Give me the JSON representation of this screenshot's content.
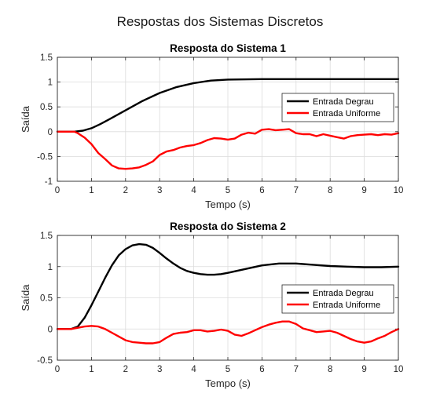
{
  "figure": {
    "title": "Respostas dos Sistemas Discretos"
  },
  "colors": {
    "series1": "#000000",
    "series2": "#ff0000",
    "grid": "#dcdcdc",
    "axis": "#262626"
  },
  "chart_data": [
    {
      "type": "line",
      "title": "Resposta do Sistema 1",
      "xlabel": "Tempo (s)",
      "ylabel": "Saída",
      "xlim": [
        0,
        10
      ],
      "ylim": [
        -1,
        1.5
      ],
      "xticks": [
        0,
        1,
        2,
        3,
        4,
        5,
        6,
        7,
        8,
        9,
        10
      ],
      "yticks": [
        -1,
        -0.5,
        0,
        0.5,
        1,
        1.5
      ],
      "grid": true,
      "legend": "right",
      "series": [
        {
          "name": "Entrada Degrau",
          "x": [
            0,
            0.5,
            0.75,
            1,
            1.25,
            1.5,
            2,
            2.5,
            3,
            3.5,
            4,
            4.5,
            5,
            6,
            7,
            8,
            9,
            10
          ],
          "y": [
            0,
            0,
            0.02,
            0.07,
            0.15,
            0.24,
            0.43,
            0.62,
            0.78,
            0.9,
            0.98,
            1.03,
            1.05,
            1.06,
            1.06,
            1.06,
            1.06,
            1.06
          ]
        },
        {
          "name": "Entrada Uniforme",
          "x": [
            0,
            0.5,
            0.6,
            0.8,
            1,
            1.2,
            1.4,
            1.6,
            1.8,
            2,
            2.2,
            2.4,
            2.6,
            2.8,
            3,
            3.2,
            3.4,
            3.6,
            3.8,
            4,
            4.2,
            4.4,
            4.6,
            4.8,
            5,
            5.2,
            5.4,
            5.6,
            5.8,
            6,
            6.2,
            6.4,
            6.6,
            6.8,
            7,
            7.2,
            7.4,
            7.6,
            7.8,
            8,
            8.2,
            8.4,
            8.6,
            8.8,
            9,
            9.2,
            9.4,
            9.6,
            9.8,
            10
          ],
          "y": [
            0,
            0,
            -0.03,
            -0.12,
            -0.25,
            -0.43,
            -0.55,
            -0.68,
            -0.74,
            -0.75,
            -0.74,
            -0.72,
            -0.67,
            -0.6,
            -0.47,
            -0.4,
            -0.37,
            -0.32,
            -0.29,
            -0.27,
            -0.23,
            -0.17,
            -0.13,
            -0.14,
            -0.16,
            -0.14,
            -0.06,
            -0.02,
            -0.04,
            0.04,
            0.05,
            0.03,
            0.04,
            0.05,
            -0.03,
            -0.05,
            -0.05,
            -0.09,
            -0.05,
            -0.08,
            -0.11,
            -0.14,
            -0.09,
            -0.07,
            -0.06,
            -0.05,
            -0.07,
            -0.05,
            -0.06,
            -0.03
          ]
        }
      ]
    },
    {
      "type": "line",
      "title": "Resposta do Sistema 2",
      "xlabel": "Tempo (s)",
      "ylabel": "Saída",
      "xlim": [
        0,
        10
      ],
      "ylim": [
        -0.5,
        1.5
      ],
      "xticks": [
        0,
        1,
        2,
        3,
        4,
        5,
        6,
        7,
        8,
        9,
        10
      ],
      "yticks": [
        -0.5,
        0,
        0.5,
        1,
        1.5
      ],
      "grid": true,
      "legend": "right",
      "series": [
        {
          "name": "Entrada Degrau",
          "x": [
            0,
            0.4,
            0.6,
            0.8,
            1,
            1.2,
            1.4,
            1.6,
            1.8,
            2,
            2.2,
            2.4,
            2.6,
            2.8,
            3,
            3.2,
            3.4,
            3.6,
            3.8,
            4,
            4.2,
            4.4,
            4.6,
            4.8,
            5,
            5.5,
            6,
            6.5,
            7,
            7.5,
            8,
            8.5,
            9,
            9.5,
            10
          ],
          "y": [
            0,
            0,
            0.04,
            0.18,
            0.38,
            0.6,
            0.82,
            1.02,
            1.18,
            1.28,
            1.34,
            1.36,
            1.35,
            1.3,
            1.22,
            1.13,
            1.05,
            0.98,
            0.93,
            0.9,
            0.88,
            0.87,
            0.87,
            0.88,
            0.9,
            0.96,
            1.02,
            1.05,
            1.05,
            1.03,
            1.01,
            1.0,
            0.99,
            0.99,
            1.0
          ]
        },
        {
          "name": "Entrada Uniforme",
          "x": [
            0,
            0.4,
            0.6,
            0.8,
            1,
            1.2,
            1.4,
            1.6,
            1.8,
            2,
            2.2,
            2.4,
            2.6,
            2.8,
            3,
            3.2,
            3.4,
            3.6,
            3.8,
            4,
            4.2,
            4.4,
            4.6,
            4.8,
            5,
            5.2,
            5.4,
            5.6,
            5.8,
            6,
            6.2,
            6.4,
            6.6,
            6.8,
            7,
            7.2,
            7.4,
            7.6,
            7.8,
            8,
            8.2,
            8.4,
            8.6,
            8.8,
            9,
            9.2,
            9.4,
            9.6,
            9.8,
            10
          ],
          "y": [
            0,
            0,
            0.02,
            0.04,
            0.05,
            0.04,
            0.0,
            -0.06,
            -0.12,
            -0.18,
            -0.21,
            -0.22,
            -0.23,
            -0.23,
            -0.21,
            -0.14,
            -0.08,
            -0.06,
            -0.05,
            -0.02,
            -0.02,
            -0.04,
            -0.03,
            -0.01,
            -0.03,
            -0.09,
            -0.11,
            -0.07,
            -0.02,
            0.03,
            0.07,
            0.1,
            0.12,
            0.12,
            0.08,
            0.01,
            -0.02,
            -0.05,
            -0.04,
            -0.03,
            -0.06,
            -0.11,
            -0.16,
            -0.2,
            -0.22,
            -0.2,
            -0.15,
            -0.11,
            -0.05,
            0.0
          ]
        }
      ]
    }
  ]
}
